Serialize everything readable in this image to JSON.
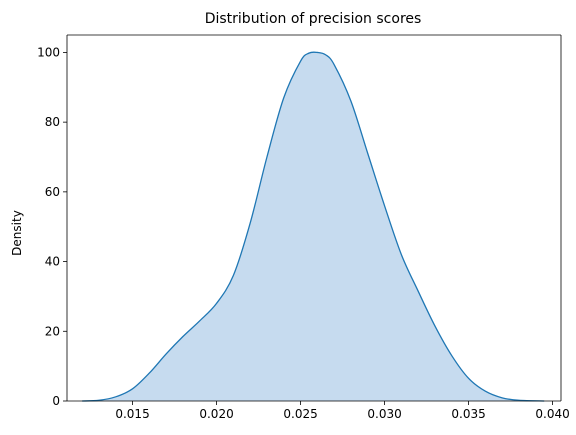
{
  "chart_data": {
    "type": "area",
    "title": "Distribution of precision scores",
    "xlabel": "",
    "ylabel": "Density",
    "xlim": [
      0.0111,
      0.0405
    ],
    "ylim": [
      0,
      105
    ],
    "xticks": [
      0.015,
      0.02,
      0.025,
      0.03,
      0.035,
      0.04
    ],
    "xtick_labels": [
      "0.015",
      "0.020",
      "0.025",
      "0.030",
      "0.035",
      "0.040"
    ],
    "yticks": [
      0,
      20,
      40,
      60,
      80,
      100
    ],
    "ytick_labels": [
      "0",
      "20",
      "40",
      "60",
      "80",
      "100"
    ],
    "grid": false,
    "series": [
      {
        "line_color": "#1f77b4",
        "fill_color": "#c6dbef",
        "x": [
          0.012,
          0.013,
          0.014,
          0.015,
          0.016,
          0.017,
          0.018,
          0.019,
          0.02,
          0.021,
          0.022,
          0.023,
          0.024,
          0.025,
          0.0255,
          0.026,
          0.0265,
          0.027,
          0.028,
          0.029,
          0.03,
          0.031,
          0.032,
          0.033,
          0.034,
          0.035,
          0.036,
          0.037,
          0.038,
          0.0395
        ],
        "y": [
          0.0,
          0.2,
          1.2,
          3.5,
          8.0,
          13.5,
          18.5,
          23.0,
          28.0,
          36.0,
          51.0,
          70.0,
          87.0,
          97.5,
          99.8,
          100.0,
          99.3,
          96.5,
          86.0,
          71.0,
          56.0,
          42.0,
          31.5,
          21.5,
          13.0,
          6.5,
          2.8,
          0.9,
          0.2,
          0.0
        ]
      }
    ]
  }
}
